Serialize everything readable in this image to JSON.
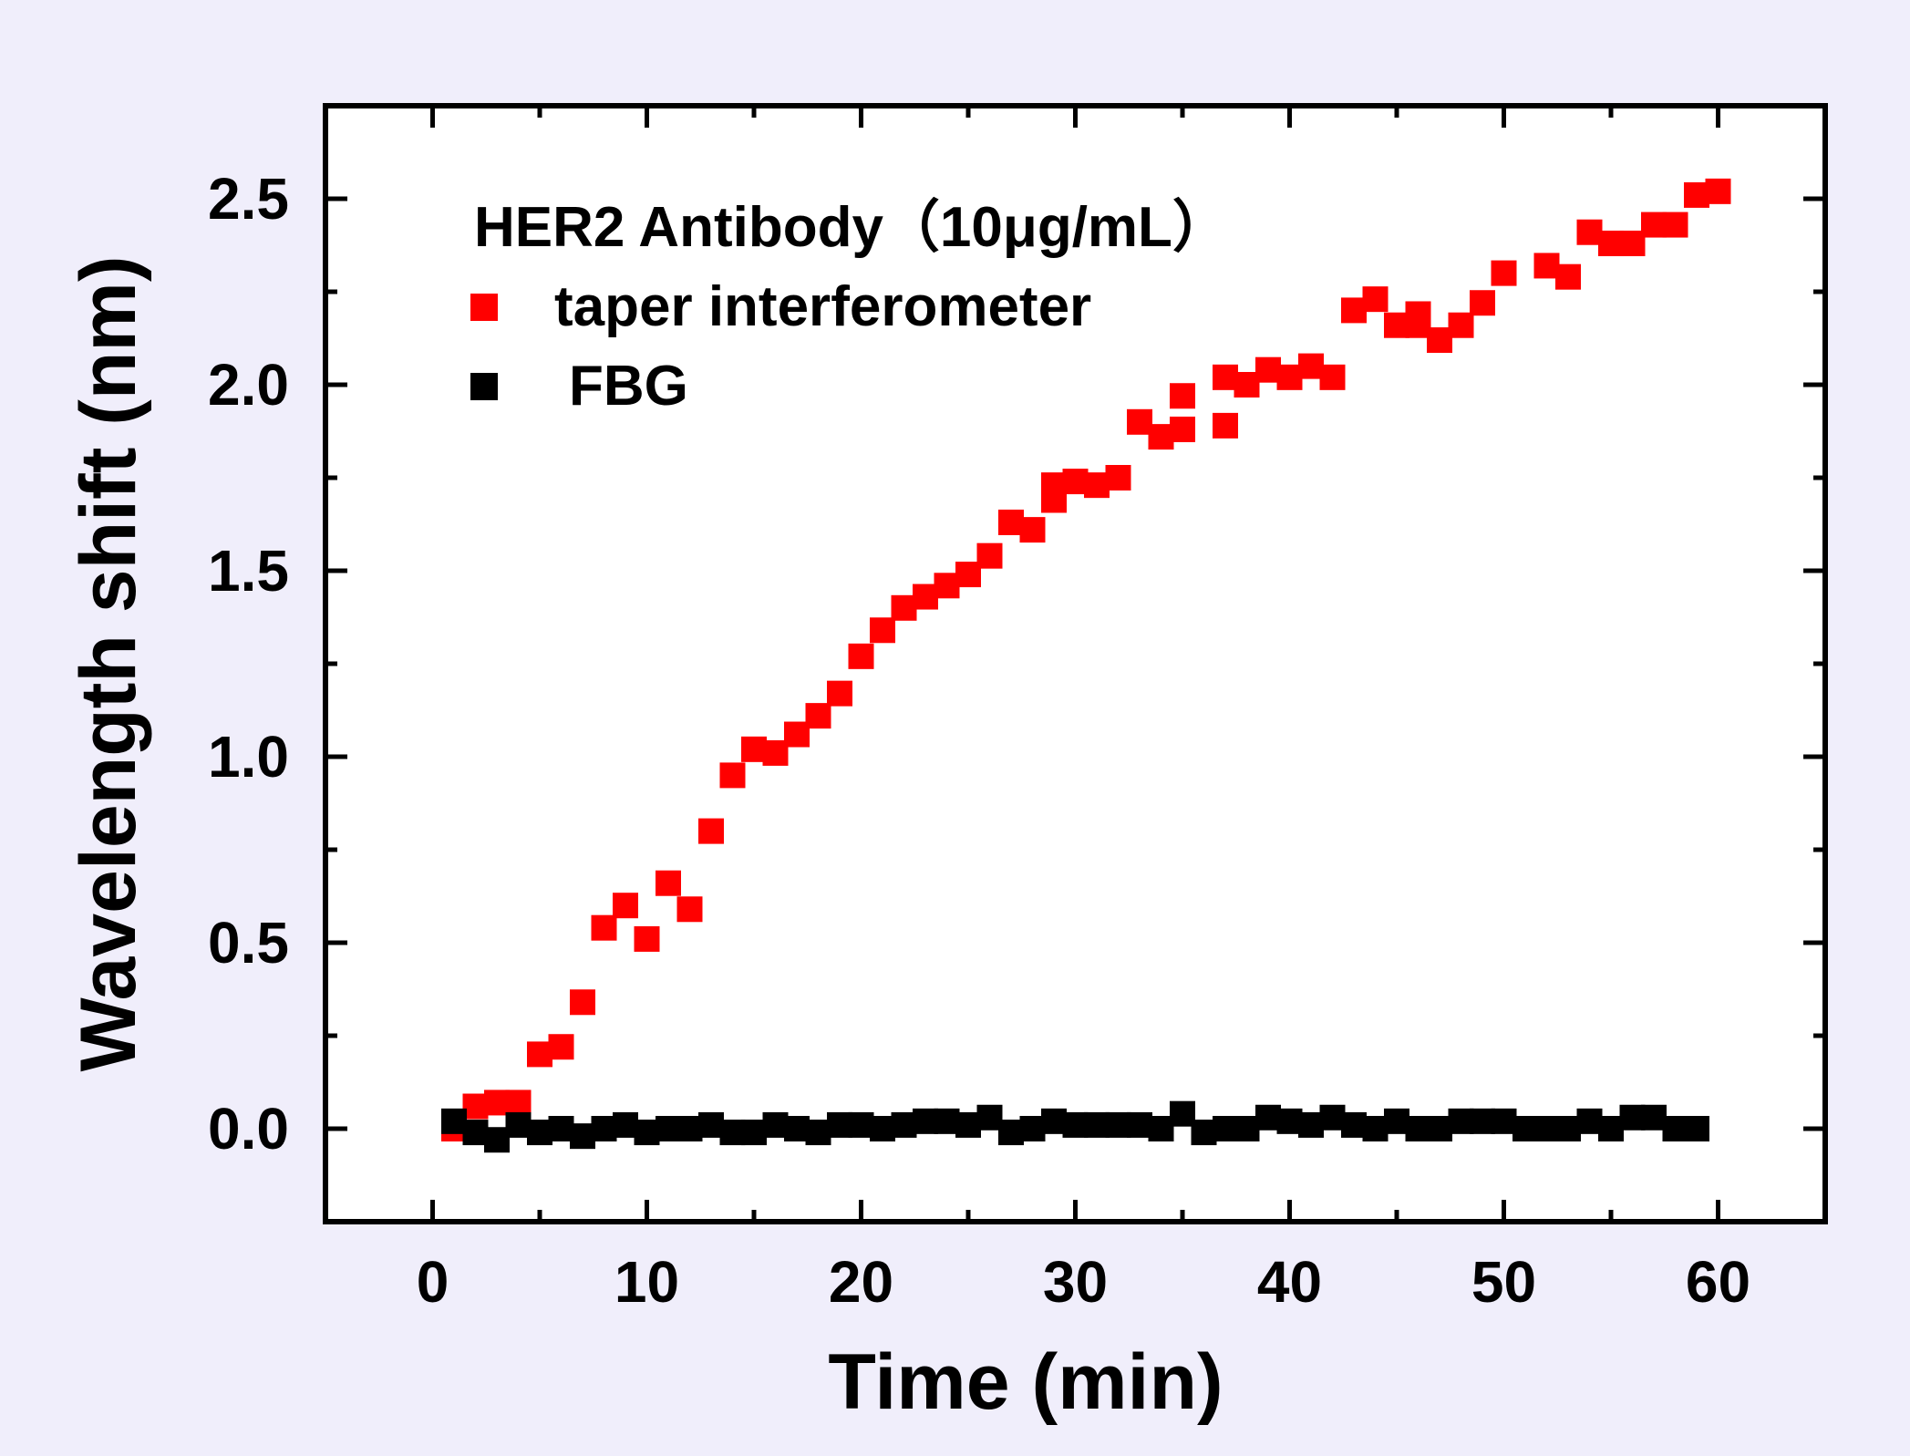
{
  "chart_data": {
    "type": "scatter",
    "title": "HER2 Antibody（10μg/mL）",
    "xlabel": "Time (min)",
    "ylabel": "Wavelength shift (nm)",
    "xlim": [
      -5,
      65
    ],
    "ylim": [
      -0.25,
      2.75
    ],
    "xticks": [
      0,
      10,
      20,
      30,
      40,
      50,
      60
    ],
    "xtick_labels": [
      "0",
      "10",
      "20",
      "30",
      "40",
      "50",
      "60"
    ],
    "yticks": [
      0.0,
      0.5,
      1.0,
      1.5,
      2.0,
      2.5
    ],
    "ytick_labels": [
      "0.0",
      "0.5",
      "1.0",
      "1.5",
      "2.0",
      "2.5"
    ],
    "legend_position": "top-left",
    "colors": {
      "background": "#F0EEFB",
      "plot_area": "#FFFFFF",
      "taper": "#FF0000",
      "fbg": "#000000"
    },
    "series": [
      {
        "name": "taper interferometer",
        "marker": "square",
        "color": "#FF0000",
        "x": [
          1,
          2,
          3,
          4,
          5,
          6,
          7,
          8,
          9,
          10,
          11,
          12,
          13,
          14,
          15,
          16,
          17,
          18,
          19,
          20,
          21,
          22,
          23,
          24,
          25,
          26,
          27,
          28,
          29,
          29,
          30,
          31,
          32,
          33,
          34,
          35,
          35,
          37,
          37,
          38,
          39,
          40,
          41,
          42,
          43,
          44,
          45,
          46,
          46,
          47,
          48,
          49,
          50,
          52,
          53,
          54,
          55,
          56,
          57,
          58,
          59,
          60
        ],
        "y": [
          0.0,
          0.06,
          0.07,
          0.07,
          0.2,
          0.22,
          0.34,
          0.54,
          0.6,
          0.51,
          0.66,
          0.59,
          0.8,
          0.95,
          1.02,
          1.01,
          1.06,
          1.11,
          1.17,
          1.27,
          1.34,
          1.4,
          1.43,
          1.46,
          1.49,
          1.54,
          1.63,
          1.61,
          1.69,
          1.73,
          1.74,
          1.73,
          1.75,
          1.9,
          1.86,
          1.88,
          1.97,
          1.89,
          2.02,
          2.0,
          2.04,
          2.02,
          2.05,
          2.02,
          2.2,
          2.23,
          2.16,
          2.16,
          2.19,
          2.12,
          2.16,
          2.22,
          2.3,
          2.32,
          2.29,
          2.41,
          2.38,
          2.38,
          2.43,
          2.43,
          2.51,
          2.52
        ]
      },
      {
        "name": "FBG",
        "marker": "square",
        "color": "#000000",
        "x": [
          1,
          2,
          3,
          4,
          5,
          6,
          7,
          8,
          9,
          10,
          11,
          12,
          13,
          14,
          15,
          16,
          17,
          18,
          19,
          20,
          21,
          22,
          23,
          24,
          25,
          26,
          27,
          28,
          29,
          30,
          31,
          32,
          33,
          34,
          35,
          36,
          37,
          38,
          39,
          40,
          41,
          42,
          43,
          44,
          45,
          46,
          47,
          48,
          49,
          50,
          51,
          52,
          53,
          54,
          55,
          56,
          57,
          58,
          59
        ],
        "y": [
          0.02,
          -0.01,
          -0.03,
          0.01,
          -0.01,
          0.0,
          -0.02,
          0.0,
          0.01,
          -0.01,
          0.0,
          0.0,
          0.01,
          -0.01,
          -0.01,
          0.01,
          0.0,
          -0.01,
          0.01,
          0.01,
          0.0,
          0.01,
          0.02,
          0.02,
          0.01,
          0.03,
          -0.01,
          0.0,
          0.02,
          0.01,
          0.01,
          0.01,
          0.01,
          0.0,
          0.04,
          -0.01,
          0.0,
          0.0,
          0.03,
          0.02,
          0.01,
          0.03,
          0.01,
          0.0,
          0.02,
          0.0,
          0.0,
          0.02,
          0.02,
          0.02,
          0.0,
          0.0,
          0.0,
          0.02,
          0.0,
          0.03,
          0.03,
          0.0,
          0.0
        ]
      }
    ]
  }
}
